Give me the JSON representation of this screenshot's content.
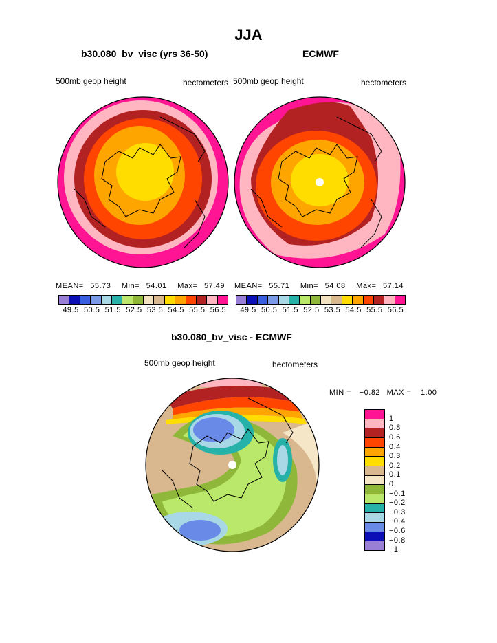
{
  "page_title": "JJA",
  "chart_data": [
    {
      "type": "heatmap",
      "title": "b30.080_bv_visc (yrs 36-50)",
      "left_label": "500mb geop height",
      "right_label": "hectometers",
      "stats": {
        "mean_label": "MEAN=",
        "mean": "55.73",
        "min_label": "Min=",
        "min": "54.01",
        "max_label": "Max=",
        "max": "57.49"
      },
      "levels": [
        "49.5",
        "50.5",
        "51.5",
        "52.5",
        "53.5",
        "54.5",
        "55.5",
        "56.5"
      ],
      "colors": [
        "#9a7fd6",
        "#0b0fb5",
        "#3a5ee0",
        "#7a9ae8",
        "#a8d8e6",
        "#26b2a8",
        "#b9e86a",
        "#8fb83a",
        "#f2e2c0",
        "#d9b88f",
        "#ffdd00",
        "#ffa500",
        "#ff4500",
        "#b22222",
        "#ffb6c1",
        "#ff1493"
      ]
    },
    {
      "type": "heatmap",
      "title": "ECMWF",
      "left_label": "500mb geop height",
      "right_label": "hectometers",
      "stats": {
        "mean_label": "MEAN=",
        "mean": "55.71",
        "min_label": "Min=",
        "min": "54.08",
        "max_label": "Max=",
        "max": "57.14"
      },
      "levels": [
        "49.5",
        "50.5",
        "51.5",
        "52.5",
        "53.5",
        "54.5",
        "55.5",
        "56.5"
      ],
      "colors": [
        "#9a7fd6",
        "#0b0fb5",
        "#3a5ee0",
        "#7a9ae8",
        "#a8d8e6",
        "#26b2a8",
        "#b9e86a",
        "#8fb83a",
        "#f2e2c0",
        "#d9b88f",
        "#ffdd00",
        "#ffa500",
        "#ff4500",
        "#b22222",
        "#ffb6c1",
        "#ff1493"
      ]
    },
    {
      "type": "heatmap",
      "title": "b30.080_bv_visc - ECMWF",
      "left_label": "500mb geop height",
      "right_label": "hectometers",
      "stats": {
        "min_label": "MIN =",
        "min": "−0.82",
        "max_label": "MAX =",
        "max": "1.00"
      },
      "levels": [
        "1",
        "0.8",
        "0.6",
        "0.4",
        "0.3",
        "0.2",
        "0.1",
        "0",
        "−0.1",
        "−0.2",
        "−0.3",
        "−0.4",
        "−0.6",
        "−0.8",
        "−1"
      ],
      "colors": [
        "#ff1493",
        "#ffb6c1",
        "#b22222",
        "#ff4500",
        "#ffa500",
        "#ffdd00",
        "#d9b88f",
        "#f5e6c8",
        "#8fb83a",
        "#b9e86a",
        "#26b2a8",
        "#a8d8e6",
        "#6a8ae8",
        "#0b0fb5",
        "#9a7fd6"
      ]
    }
  ]
}
